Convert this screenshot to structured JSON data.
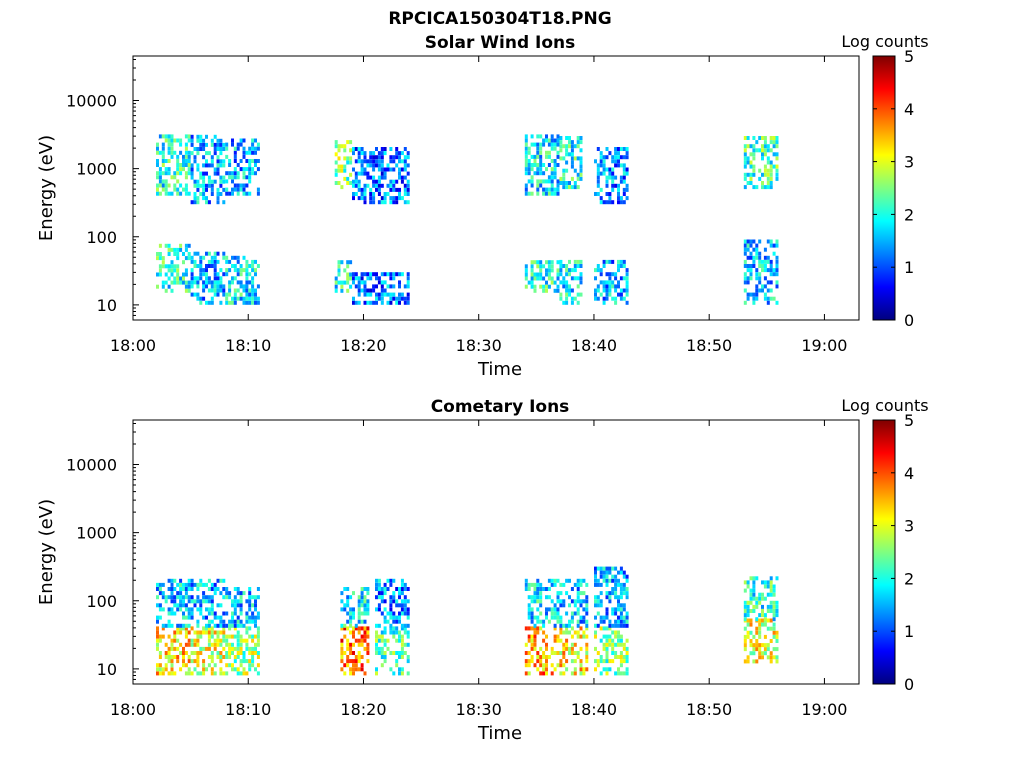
{
  "figure_title": "RPCICA150304T18.PNG",
  "chart_data": [
    {
      "type": "heatmap",
      "title": "Solar Wind Ions",
      "xlabel": "Time",
      "ylabel": "Energy (eV)",
      "yscale": "log",
      "ylim": [
        6,
        45000
      ],
      "xlim": [
        "18:00",
        "19:03"
      ],
      "x_ticks": [
        "18:00",
        "18:10",
        "18:20",
        "18:30",
        "18:40",
        "18:50",
        "19:00"
      ],
      "y_ticks": [
        "10",
        "100",
        "1000",
        "10000"
      ],
      "colorbar": {
        "label": "Log counts",
        "range": [
          0,
          5
        ],
        "ticks": [
          "0",
          "1",
          "2",
          "3",
          "4",
          "5"
        ],
        "colormap": "jet"
      },
      "bursts": [
        {
          "start": "18:02",
          "end": "18:05",
          "bands": [
            [
              400,
              3000,
              2.0
            ],
            [
              15,
              70,
              2.0
            ]
          ]
        },
        {
          "start": "18:05",
          "end": "18:08",
          "bands": [
            [
              300,
              3000,
              1.5
            ],
            [
              10,
              60,
              1.5
            ]
          ]
        },
        {
          "start": "18:08",
          "end": "18:11",
          "bands": [
            [
              400,
              2500,
              1.5
            ],
            [
              10,
              50,
              1.8
            ]
          ]
        },
        {
          "start": "18:17.5",
          "end": "18:19",
          "bands": [
            [
              500,
              2500,
              2.5
            ],
            [
              15,
              40,
              2.0
            ]
          ]
        },
        {
          "start": "18:19",
          "end": "18:24",
          "bands": [
            [
              300,
              2000,
              1.2
            ],
            [
              10,
              30,
              1.2
            ]
          ]
        },
        {
          "start": "18:34",
          "end": "18:37",
          "bands": [
            [
              400,
              3000,
              1.8
            ],
            [
              15,
              40,
              2.0
            ]
          ]
        },
        {
          "start": "18:37",
          "end": "18:39",
          "bands": [
            [
              500,
              3000,
              2.0
            ],
            [
              10,
              40,
              1.8
            ]
          ]
        },
        {
          "start": "18:40",
          "end": "18:43",
          "bands": [
            [
              300,
              2000,
              1.3
            ],
            [
              10,
              40,
              1.5
            ]
          ]
        },
        {
          "start": "18:53",
          "end": "18:56",
          "bands": [
            [
              500,
              3000,
              2.2
            ],
            [
              10,
              80,
              1.6
            ]
          ]
        }
      ]
    },
    {
      "type": "heatmap",
      "title": "Cometary Ions",
      "xlabel": "Time",
      "ylabel": "Energy (eV)",
      "yscale": "log",
      "ylim": [
        6,
        45000
      ],
      "xlim": [
        "18:00",
        "19:03"
      ],
      "x_ticks": [
        "18:00",
        "18:10",
        "18:20",
        "18:30",
        "18:40",
        "18:50",
        "19:00"
      ],
      "y_ticks": [
        "10",
        "100",
        "1000",
        "10000"
      ],
      "colorbar": {
        "label": "Log counts",
        "range": [
          0,
          5
        ],
        "ticks": [
          "0",
          "1",
          "2",
          "3",
          "4",
          "5"
        ],
        "colormap": "jet"
      },
      "bursts": [
        {
          "start": "18:02",
          "end": "18:05",
          "bands": [
            [
              8,
              40,
              3.3
            ],
            [
              40,
              200,
              1.6
            ]
          ]
        },
        {
          "start": "18:05",
          "end": "18:08",
          "bands": [
            [
              8,
              40,
              3.0
            ],
            [
              40,
              200,
              1.5
            ]
          ]
        },
        {
          "start": "18:08",
          "end": "18:11",
          "bands": [
            [
              8,
              40,
              2.6
            ],
            [
              40,
              150,
              1.6
            ]
          ]
        },
        {
          "start": "18:18",
          "end": "18:20.5",
          "bands": [
            [
              8,
              40,
              3.8
            ],
            [
              40,
              150,
              1.8
            ]
          ]
        },
        {
          "start": "18:21",
          "end": "18:24",
          "bands": [
            [
              8,
              40,
              2.2
            ],
            [
              40,
              200,
              1.3
            ]
          ]
        },
        {
          "start": "18:34",
          "end": "18:37",
          "bands": [
            [
              8,
              40,
              3.6
            ],
            [
              40,
              200,
              1.8
            ]
          ]
        },
        {
          "start": "18:37",
          "end": "18:39.5",
          "bands": [
            [
              8,
              40,
              3.2
            ],
            [
              40,
              200,
              1.6
            ]
          ]
        },
        {
          "start": "18:40",
          "end": "18:43",
          "bands": [
            [
              8,
              40,
              2.5
            ],
            [
              40,
              300,
              1.5
            ]
          ]
        },
        {
          "start": "18:53",
          "end": "18:56",
          "bands": [
            [
              12,
              50,
              3.0
            ],
            [
              50,
              200,
              2.0
            ]
          ]
        }
      ]
    }
  ]
}
